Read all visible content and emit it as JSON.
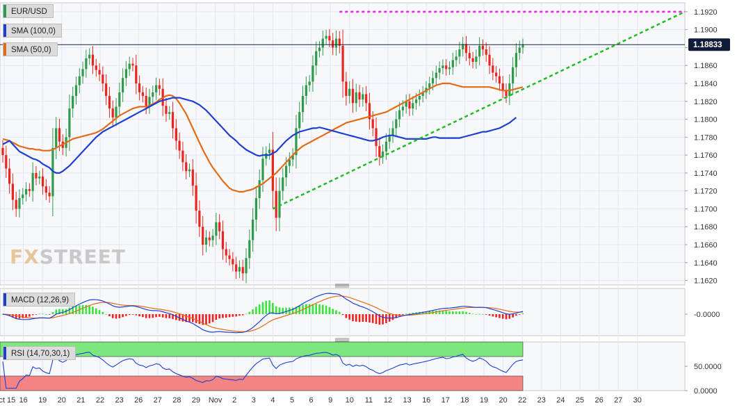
{
  "labels": {
    "pair": "EUR/USD",
    "sma100": "SMA (100,0)",
    "sma50": "SMA (50,0)",
    "macd": "MACD (12,26,9)",
    "rsi": "RSI (14,70,30,1)",
    "price_tag": "1.18833",
    "logo_a": "FX",
    "logo_b": "STREET"
  },
  "colors": {
    "up": "#2e9a4a",
    "down": "#e8251e",
    "sma100": "#1f3fd1",
    "sma50": "#e36b15",
    "resistance": "#ee22ee",
    "trendline": "#22bb22",
    "price_line": "#12284a",
    "macd_line": "#1f3fd1",
    "signal_line": "#e36b15",
    "hist_pos": "#3ce23c",
    "hist_neg": "#ee2020",
    "rsi_line": "#1f3fd1",
    "overbought_fill": "#7ce77c",
    "oversold_fill": "#f58585"
  },
  "chart_data": {
    "type": "candlestick",
    "title": "EUR/USD",
    "price_axis": {
      "ticks": [
        "1.1920",
        "1.1900",
        "1.1880",
        "1.1860",
        "1.1840",
        "1.1820",
        "1.1800",
        "1.1780",
        "1.1760",
        "1.1740",
        "1.1720",
        "1.1700",
        "1.1680",
        "1.1660",
        "1.1640",
        "1.1620"
      ],
      "range": [
        1.1615,
        1.193
      ]
    },
    "x_ticks": [
      "Oct 15",
      "16",
      "19",
      "20",
      "21",
      "22",
      "23",
      "26",
      "27",
      "28",
      "29",
      "Nov",
      "2",
      "3",
      "4",
      "5",
      "6",
      "9",
      "10",
      "11",
      "12",
      "13",
      "16",
      "17",
      "18",
      "19",
      "20",
      "22",
      "23",
      "24",
      "25",
      "26",
      "27",
      "30"
    ],
    "last_price": 1.18833,
    "resistance_level": 1.192,
    "trendline": {
      "from": {
        "date": "Nov 4",
        "value": 1.17
      },
      "to": {
        "date": "Nov 30",
        "value": 1.192
      }
    },
    "close": [
      1.176,
      1.1745,
      1.1728,
      1.171,
      1.17,
      1.1712,
      1.1716,
      1.1722,
      1.172,
      1.174,
      1.1734,
      1.1736,
      1.1725,
      1.1718,
      1.1714,
      1.1768,
      1.179,
      1.1775,
      1.1768,
      1.178,
      1.1812,
      1.1826,
      1.1838,
      1.1848,
      1.1856,
      1.1868,
      1.1872,
      1.186,
      1.1855,
      1.185,
      1.184,
      1.1826,
      1.1812,
      1.1802,
      1.1814,
      1.183,
      1.1846,
      1.1856,
      1.1862,
      1.186,
      1.184,
      1.183,
      1.1826,
      1.1815,
      1.1825,
      1.183,
      1.1838,
      1.1834,
      1.1815,
      1.1806,
      1.1808,
      1.179,
      1.1776,
      1.1765,
      1.1752,
      1.1742,
      1.1744,
      1.1726,
      1.1698,
      1.168,
      1.166,
      1.1668,
      1.1665,
      1.167,
      1.1685,
      1.1675,
      1.1655,
      1.1648,
      1.1644,
      1.1638,
      1.163,
      1.1635,
      1.1628,
      1.1645,
      1.1665,
      1.1688,
      1.1712,
      1.1732,
      1.1756,
      1.1762,
      1.1766,
      1.172,
      1.169,
      1.172,
      1.1735,
      1.1748,
      1.1755,
      1.176,
      1.179,
      1.1808,
      1.1826,
      1.1838,
      1.1842,
      1.186,
      1.1876,
      1.188,
      1.189,
      1.1893,
      1.1888,
      1.188,
      1.189,
      1.1882,
      1.1842,
      1.1826,
      1.1834,
      1.1818,
      1.183,
      1.1822,
      1.1828,
      1.1818,
      1.18,
      1.179,
      1.177,
      1.1758,
      1.1764,
      1.1775,
      1.1782,
      1.179,
      1.18,
      1.181,
      1.1814,
      1.182,
      1.1812,
      1.1818,
      1.1822,
      1.1826,
      1.183,
      1.1835,
      1.184,
      1.1846,
      1.1852,
      1.1857,
      1.186,
      1.1856,
      1.1858,
      1.1866,
      1.187,
      1.1878,
      1.1884,
      1.1874,
      1.1868,
      1.1864,
      1.187,
      1.1882,
      1.1878,
      1.1872,
      1.186,
      1.1852,
      1.1848,
      1.184,
      1.1832,
      1.1826,
      1.184,
      1.1858,
      1.1874,
      1.188,
      1.1883
    ],
    "sma100": [
      1.1772,
      1.1774,
      1.1776,
      1.1772,
      1.1768,
      1.1764,
      1.1762,
      1.176,
      1.1758,
      1.1756,
      1.1755,
      1.1753,
      1.175,
      1.1748,
      1.1746,
      1.1742,
      1.174,
      1.174,
      1.1742,
      1.1745,
      1.1748,
      1.1752,
      1.1756,
      1.176,
      1.1764,
      1.1768,
      1.1772,
      1.1776,
      1.178,
      1.1783,
      1.1786,
      1.1788,
      1.179,
      1.1792,
      1.1794,
      1.1796,
      1.1798,
      1.18,
      1.1802,
      1.1804,
      1.1806,
      1.1808,
      1.181,
      1.1812,
      1.1814,
      1.1816,
      1.1818,
      1.182,
      1.1821,
      1.1822,
      1.1823,
      1.1824,
      1.1824,
      1.1824,
      1.1823,
      1.1822,
      1.1821,
      1.182,
      1.1818,
      1.1816,
      1.1813,
      1.181,
      1.1806,
      1.1802,
      1.1798,
      1.1794,
      1.179,
      1.1786,
      1.1782,
      1.1779,
      1.1776,
      1.1772,
      1.1769,
      1.1766,
      1.1764,
      1.1762,
      1.176,
      1.1759,
      1.176,
      1.176,
      1.176,
      1.1762,
      1.1764,
      1.1768,
      1.1772,
      1.1776,
      1.1779,
      1.1782,
      1.1784,
      1.1786,
      1.1787,
      1.1788,
      1.1789,
      1.179,
      1.179,
      1.1791,
      1.179,
      1.1789,
      1.1788,
      1.1787,
      1.1786,
      1.1785,
      1.1784,
      1.1783,
      1.1782,
      1.1781,
      1.178,
      1.1779,
      1.1778,
      1.1777,
      1.1776,
      1.1776,
      1.1777,
      1.1778,
      1.178,
      1.1781,
      1.1782,
      1.1782,
      1.1781,
      1.178,
      1.1779,
      1.1778,
      1.1778,
      1.1778,
      1.1778,
      1.1778,
      1.1778,
      1.1778,
      1.1779,
      1.178,
      1.178,
      1.1779,
      1.1779,
      1.1779,
      1.1779,
      1.1779,
      1.1779,
      1.1779,
      1.178,
      1.1781,
      1.1782,
      1.1783,
      1.1784,
      1.1785,
      1.1786,
      1.1786,
      1.1787,
      1.1788,
      1.1789,
      1.179,
      1.1792,
      1.1794,
      1.1796,
      1.1799,
      1.1802
    ],
    "sma50": [
      1.1778,
      1.1777,
      1.1776,
      1.1774,
      1.1772,
      1.177,
      1.1769,
      1.1768,
      1.1767,
      1.1767,
      1.1766,
      1.1766,
      1.1765,
      1.1765,
      1.1765,
      1.1766,
      1.1768,
      1.177,
      1.1772,
      1.1774,
      1.1776,
      1.1778,
      1.1779,
      1.178,
      1.1781,
      1.1782,
      1.1783,
      1.1784,
      1.1785,
      1.1787,
      1.1789,
      1.1792,
      1.1795,
      1.1798,
      1.1801,
      1.1804,
      1.1806,
      1.1808,
      1.181,
      1.1812,
      1.1813,
      1.1814,
      1.1814,
      1.1814,
      1.1815,
      1.1817,
      1.1819,
      1.1822,
      1.1824,
      1.1826,
      1.1827,
      1.1826,
      1.1823,
      1.1818,
      1.1812,
      1.1806,
      1.1798,
      1.179,
      1.1782,
      1.1774,
      1.1766,
      1.1759,
      1.1752,
      1.1746,
      1.1741,
      1.1736,
      1.1731,
      1.1727,
      1.1723,
      1.1721,
      1.172,
      1.1719,
      1.1719,
      1.172,
      1.1721,
      1.1722,
      1.1724,
      1.1726,
      1.1728,
      1.1731,
      1.1734,
      1.1737,
      1.174,
      1.1744,
      1.1748,
      1.1752,
      1.1756,
      1.176,
      1.1764,
      1.1767,
      1.177,
      1.1772,
      1.1774,
      1.1776,
      1.1778,
      1.178,
      1.1782,
      1.1784,
      1.1786,
      1.1788,
      1.179,
      1.1792,
      1.1794,
      1.1796,
      1.1797,
      1.1798,
      1.1799,
      1.18,
      1.1801,
      1.1802,
      1.1803,
      1.1804,
      1.1805,
      1.1806,
      1.1807,
      1.1808,
      1.181,
      1.1812,
      1.1814,
      1.1816,
      1.1818,
      1.182,
      1.1822,
      1.1824,
      1.1826,
      1.1828,
      1.183,
      1.1832,
      1.1834,
      1.1836,
      1.1838,
      1.1839,
      1.184,
      1.184,
      1.184,
      1.1839,
      1.1838,
      1.1837,
      1.1836,
      1.1836,
      1.1836,
      1.1836,
      1.1836,
      1.1836,
      1.1836,
      1.1836,
      1.1836,
      1.1835,
      1.1834,
      1.1833,
      1.1832,
      1.1832,
      1.1832,
      1.1833,
      1.1834,
      1.1835,
      1.1836
    ],
    "macd_axis": {
      "tick": "-0.0000"
    },
    "rsi_axis": {
      "ticks": [
        "50.0000",
        "0.0000"
      ],
      "range": [
        0,
        100
      ],
      "overbought": 70,
      "oversold": 30
    },
    "rsi_last": 58
  }
}
